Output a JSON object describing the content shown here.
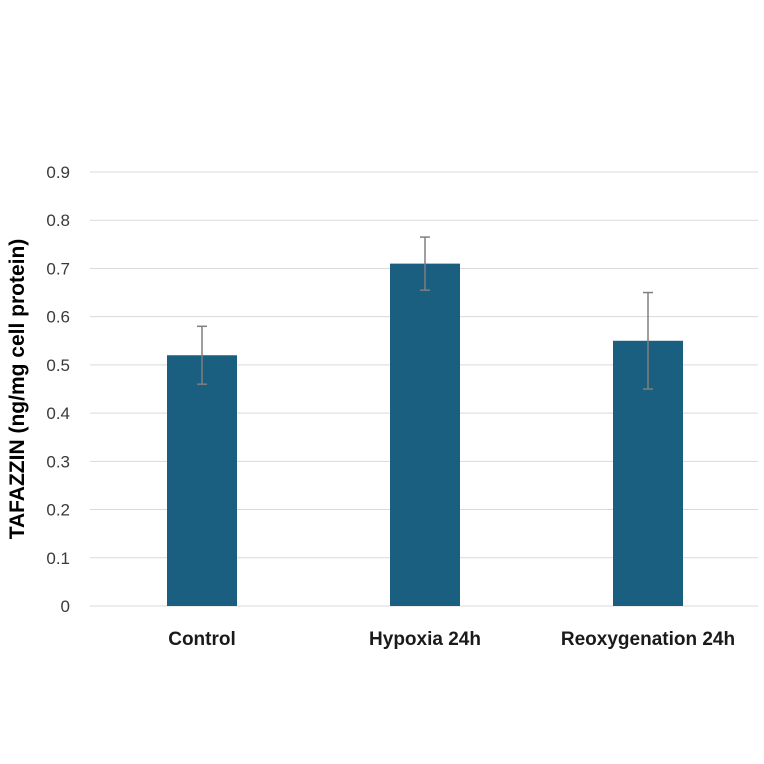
{
  "chart_data": {
    "type": "bar",
    "categories": [
      "Control",
      "Hypoxia 24h",
      "Reoxygenation 24h"
    ],
    "values": [
      0.52,
      0.71,
      0.55
    ],
    "error": [
      0.06,
      0.055,
      0.1
    ],
    "title": "",
    "xlabel": "",
    "ylabel": "TAFAZZIN (ng/mg cell protein)",
    "ylim": [
      0,
      0.9
    ],
    "yticks": [
      0,
      0.1,
      0.2,
      0.3,
      0.4,
      0.5,
      0.6,
      0.7,
      0.8,
      0.9
    ],
    "ytick_labels": [
      "0",
      "0.1",
      "0.2",
      "0.3",
      "0.4",
      "0.5",
      "0.6",
      "0.7",
      "0.8",
      "0.9"
    ],
    "grid": true,
    "legend": "none",
    "colors": {
      "bar": "#1a5e80",
      "grid": "#d9d9d9",
      "error_bar": "#7f7f7f"
    }
  }
}
